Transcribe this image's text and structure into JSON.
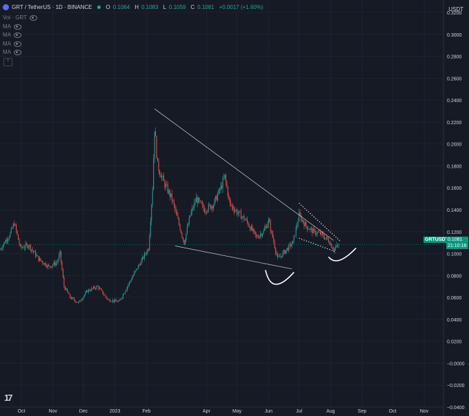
{
  "header": {
    "symbol": "GRT / TetherUS · 1D · BINANCE",
    "open_label": "O",
    "open": "0.1064",
    "high_label": "H",
    "high": "0.1083",
    "low_label": "L",
    "low": "0.1059",
    "close_label": "C",
    "close": "0.1081",
    "change": "+0.0017 (+1.60%)"
  },
  "indicators": [
    "Vol · GRT",
    "MA",
    "MA",
    "MA",
    "MA"
  ],
  "currency": "USDT",
  "ticker_label": "GRTUSDT",
  "last_price": "0.1081",
  "countdown": "21:10:18",
  "colors": {
    "up": "#26a69a",
    "down": "#ef5350",
    "background": "#161a25",
    "annotation": "#ffffff"
  },
  "chart_data": {
    "type": "candlestick",
    "x_range": [
      "2022-09-10",
      "2023-11-20"
    ],
    "ylim": [
      -0.04,
      0.32
    ],
    "y_ticks": [
      0.32,
      0.3,
      0.28,
      0.26,
      0.24,
      0.22,
      0.2,
      0.18,
      0.16,
      0.14,
      0.12,
      0.1,
      0.08,
      0.06,
      0.04,
      0.02,
      0,
      -0.02,
      -0.04
    ],
    "y_tick_labels": [
      "0.3200",
      "0.3000",
      "0.2800",
      "0.2600",
      "0.2400",
      "0.2200",
      "0.2000",
      "0.1800",
      "0.1600",
      "0.1400",
      "0.1200",
      "0.1000",
      "0.0800",
      "0.0600",
      "0.0400",
      "0.0200",
      "−0.0000",
      "−0.0200",
      "−0.0400"
    ],
    "x_ticks": [
      {
        "date": "2022-10-01",
        "label": "Oct"
      },
      {
        "date": "2022-11-01",
        "label": "Nov"
      },
      {
        "date": "2022-12-01",
        "label": "Dec"
      },
      {
        "date": "2023-01-01",
        "label": "2023"
      },
      {
        "date": "2023-02-01",
        "label": "Feb"
      },
      {
        "date": "2023-04-01",
        "label": "Apr"
      },
      {
        "date": "2023-05-01",
        "label": "May"
      },
      {
        "date": "2023-06-01",
        "label": "Jun"
      },
      {
        "date": "2023-07-01",
        "label": "Jul"
      },
      {
        "date": "2023-08-01",
        "label": "Aug"
      },
      {
        "date": "2023-09-01",
        "label": "Sep"
      },
      {
        "date": "2023-10-01",
        "label": "Oct"
      },
      {
        "date": "2023-11-01",
        "label": "Nov"
      }
    ],
    "price_path": [
      [
        "2022-09-10",
        0.104
      ],
      [
        "2022-09-20",
        0.118
      ],
      [
        "2022-09-24",
        0.128
      ],
      [
        "2022-09-30",
        0.105
      ],
      [
        "2022-10-08",
        0.108
      ],
      [
        "2022-10-18",
        0.095
      ],
      [
        "2022-10-28",
        0.088
      ],
      [
        "2022-11-05",
        0.092
      ],
      [
        "2022-11-08",
        0.1
      ],
      [
        "2022-11-12",
        0.07
      ],
      [
        "2022-11-18",
        0.06
      ],
      [
        "2022-11-26",
        0.055
      ],
      [
        "2022-12-05",
        0.066
      ],
      [
        "2022-12-15",
        0.07
      ],
      [
        "2022-12-25",
        0.058
      ],
      [
        "2023-01-05",
        0.056
      ],
      [
        "2023-01-12",
        0.068
      ],
      [
        "2023-01-20",
        0.082
      ],
      [
        "2023-01-28",
        0.095
      ],
      [
        "2023-02-03",
        0.105
      ],
      [
        "2023-02-07",
        0.16
      ],
      [
        "2023-02-09",
        0.215
      ],
      [
        "2023-02-12",
        0.18
      ],
      [
        "2023-02-18",
        0.165
      ],
      [
        "2023-02-26",
        0.15
      ],
      [
        "2023-03-04",
        0.13
      ],
      [
        "2023-03-10",
        0.11
      ],
      [
        "2023-03-16",
        0.135
      ],
      [
        "2023-03-22",
        0.15
      ],
      [
        "2023-03-30",
        0.14
      ],
      [
        "2023-04-08",
        0.145
      ],
      [
        "2023-04-15",
        0.16
      ],
      [
        "2023-04-19",
        0.17
      ],
      [
        "2023-04-24",
        0.145
      ],
      [
        "2023-05-01",
        0.138
      ],
      [
        "2023-05-10",
        0.13
      ],
      [
        "2023-05-20",
        0.115
      ],
      [
        "2023-05-27",
        0.12
      ],
      [
        "2023-06-01",
        0.13
      ],
      [
        "2023-06-05",
        0.115
      ],
      [
        "2023-06-10",
        0.095
      ],
      [
        "2023-06-15",
        0.1
      ],
      [
        "2023-06-25",
        0.11
      ],
      [
        "2023-07-01",
        0.135
      ],
      [
        "2023-07-08",
        0.125
      ],
      [
        "2023-07-15",
        0.12
      ],
      [
        "2023-07-22",
        0.118
      ],
      [
        "2023-07-30",
        0.112
      ],
      [
        "2023-08-04",
        0.104
      ],
      [
        "2023-08-09",
        0.108
      ]
    ],
    "candles_generated": true,
    "last_close": 0.1081,
    "last_date": "2023-08-09",
    "trendlines": [
      {
        "name": "descending-resistance",
        "style": "solid",
        "from": [
          "2023-02-09",
          0.232
        ],
        "to": [
          "2023-08-04",
          0.112
        ]
      },
      {
        "name": "descending-support",
        "style": "solid",
        "from": [
          "2023-03-01",
          0.107
        ],
        "to": [
          "2023-06-24",
          0.086
        ]
      },
      {
        "name": "wedge-upper",
        "style": "dotted",
        "from": [
          "2023-07-01",
          0.146
        ],
        "to": [
          "2023-08-11",
          0.111
        ]
      },
      {
        "name": "wedge-lower",
        "style": "dotted",
        "from": [
          "2023-07-01",
          0.114
        ],
        "to": [
          "2023-08-05",
          0.102
        ]
      }
    ],
    "annotations": [
      {
        "name": "cup-arc-left",
        "style": "curve",
        "points": [
          [
            "2023-05-29",
            0.085
          ],
          [
            "2023-06-08",
            0.072
          ],
          [
            "2023-06-26",
            0.083
          ]
        ]
      },
      {
        "name": "cup-arc-right",
        "style": "curve",
        "points": [
          [
            "2023-07-30",
            0.097
          ],
          [
            "2023-08-10",
            0.094
          ],
          [
            "2023-08-26",
            0.105
          ]
        ]
      }
    ]
  }
}
